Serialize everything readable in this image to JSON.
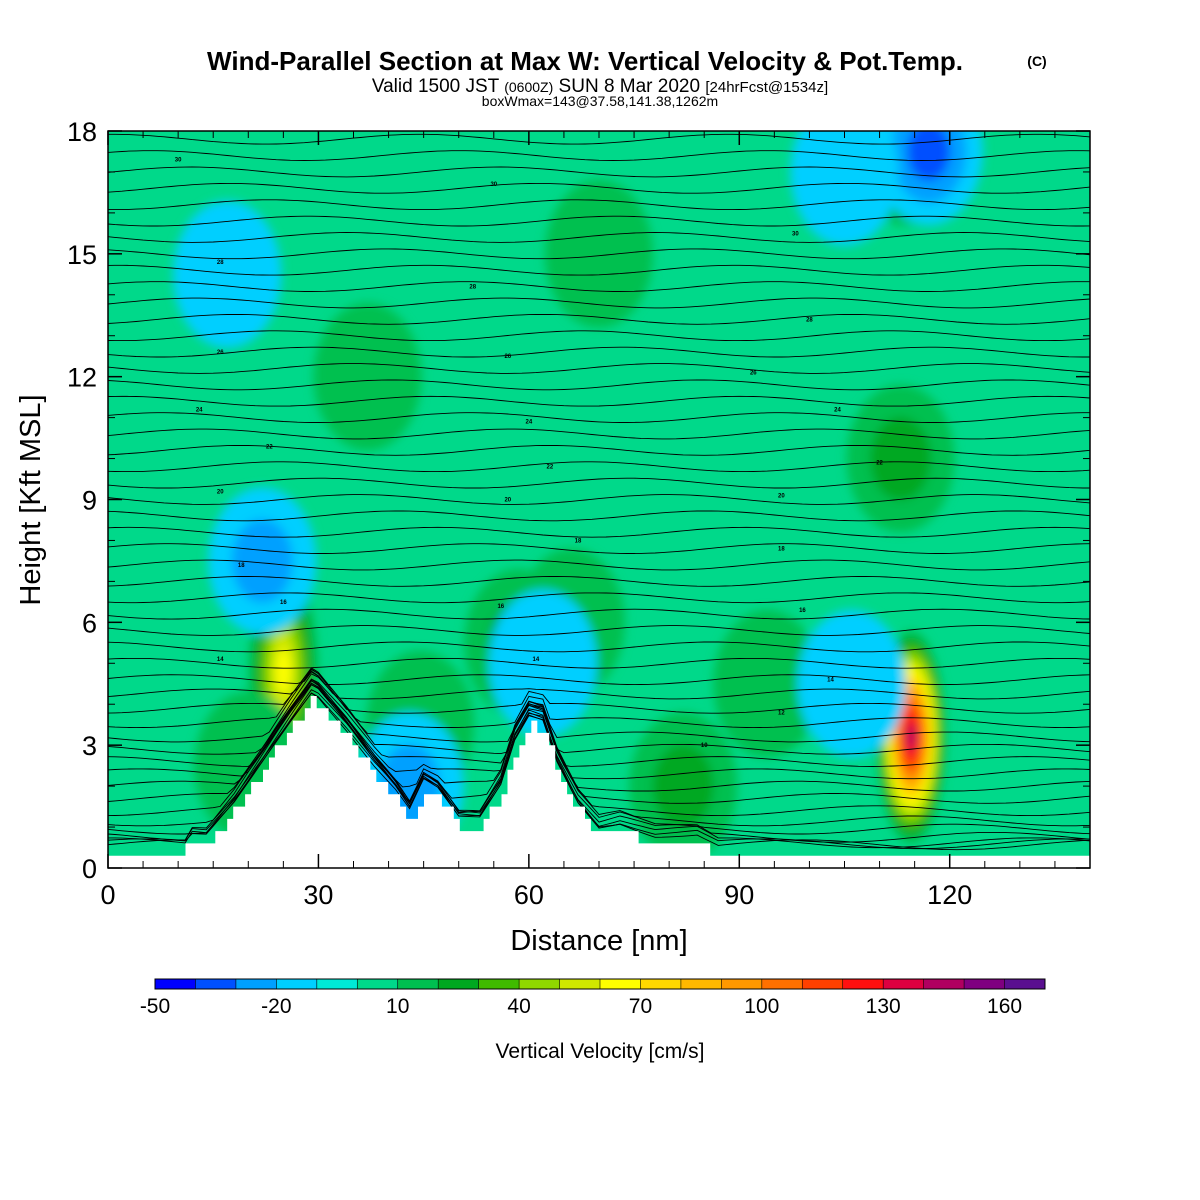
{
  "header": {
    "title": "Wind-Parallel Section at Max W: Vertical Velocity & Pot.Temp.",
    "title_mark": "(C)",
    "valid_prefix": "Valid 1500 JST",
    "valid_z": "(0600Z)",
    "valid_date": "SUN 8 Mar 2020",
    "forecast": "[24hrFcst@1534z]",
    "box_info": "boxWmax=143@37.58,141.38,1262m"
  },
  "chart_data": {
    "type": "heatmap",
    "description_kind": "cross-section",
    "xlabel": "Distance [nm]",
    "ylabel": "Height [Kft MSL]",
    "xlim": [
      0,
      140
    ],
    "ylim": [
      0,
      18
    ],
    "x_ticks": [
      "0",
      "30",
      "60",
      "90",
      "120"
    ],
    "y_ticks": [
      "0",
      "3",
      "6",
      "9",
      "12",
      "15",
      "18"
    ],
    "colorbar": {
      "title": "Vertical Velocity [cm/s]",
      "min": -50,
      "max": 170,
      "step": 10,
      "tick_labels": [
        "-50",
        "-20",
        "10",
        "40",
        "70",
        "100",
        "130",
        "160"
      ],
      "colors": [
        "#0000ff",
        "#0050ff",
        "#00a0ff",
        "#00cfff",
        "#00ead6",
        "#00d98a",
        "#00c050",
        "#00a820",
        "#40bb00",
        "#90d800",
        "#d0e800",
        "#ffff00",
        "#ffd800",
        "#ffb800",
        "#ff9800",
        "#ff7000",
        "#ff4000",
        "#ff1010",
        "#dd0040",
        "#b00060",
        "#7f0080",
        "#5a1090"
      ]
    },
    "background_value": 0,
    "terrain": {
      "x": [
        0,
        11,
        11,
        14,
        18,
        22,
        26,
        29,
        30,
        34,
        38,
        41,
        43,
        45,
        47,
        50,
        53,
        56,
        58,
        60,
        62,
        64,
        67,
        70,
        73,
        78,
        84,
        87,
        90,
        100,
        110,
        120,
        140
      ],
      "height": [
        0.3,
        0.3,
        0.6,
        0.6,
        1.4,
        2.4,
        3.4,
        4.1,
        4.0,
        3.2,
        2.3,
        1.7,
        1.2,
        1.9,
        1.7,
        1.0,
        1.0,
        1.8,
        2.9,
        3.5,
        3.4,
        2.4,
        1.4,
        0.8,
        0.9,
        0.6,
        0.6,
        0.3,
        0.3,
        0.3,
        0.3,
        0.3,
        0.3
      ]
    },
    "updraft_cells": [
      {
        "x": 114.5,
        "height": 3.2,
        "peak": 143
      },
      {
        "x": 25,
        "height": 4.8,
        "peak": 60
      },
      {
        "x": 58.5,
        "height": 5.5,
        "peak": 25
      },
      {
        "x": 82,
        "height": 2.0,
        "peak": 25
      },
      {
        "x": 94,
        "height": 4.5,
        "peak": 15
      },
      {
        "x": 20,
        "height": 2.5,
        "peak": 12
      },
      {
        "x": 44.5,
        "height": 3.5,
        "peak": 18
      },
      {
        "x": 113,
        "height": 10,
        "peak": 20
      },
      {
        "x": 113.5,
        "height": 17.5,
        "peak": 25
      },
      {
        "x": 66,
        "height": 6,
        "peak": 12
      },
      {
        "x": 70,
        "height": 15,
        "peak": 10
      },
      {
        "x": 37,
        "height": 12,
        "peak": 10
      }
    ],
    "downdraft_cells": [
      {
        "x": 117,
        "height": 17.5,
        "peak": -30
      },
      {
        "x": 43,
        "height": 2.0,
        "peak": -25
      },
      {
        "x": 22,
        "height": 7.5,
        "peak": -20
      },
      {
        "x": 62,
        "height": 5.0,
        "peak": -15
      },
      {
        "x": 106,
        "height": 4.5,
        "peak": -15
      },
      {
        "x": 17,
        "height": 14.5,
        "peak": -12
      },
      {
        "x": 105,
        "height": 17.0,
        "peak": -15
      }
    ],
    "theta_contours": {
      "units": "C",
      "base_heights": [
        0.15,
        0.35,
        0.55,
        0.75,
        0.95,
        1.15,
        1.4,
        1.7,
        2.0,
        2.3,
        2.6,
        2.9,
        3.2,
        3.55,
        3.9,
        4.25,
        4.6,
        5.0,
        5.4,
        5.8,
        6.2,
        6.6,
        7.0,
        7.4,
        7.8,
        8.2,
        8.6,
        9.0,
        9.4,
        9.8,
        10.2,
        10.6,
        11.0,
        11.4,
        11.8,
        12.2,
        12.6,
        13.0,
        13.4,
        13.8,
        14.2,
        14.6,
        15.0,
        15.4,
        15.8,
        16.2,
        16.6,
        17.0,
        17.4,
        17.8
      ],
      "labels": [
        {
          "text": "10",
          "x": 85,
          "height": 3.0
        },
        {
          "text": "12",
          "x": 96,
          "height": 3.8
        },
        {
          "text": "14",
          "x": 103,
          "height": 4.6
        },
        {
          "text": "14",
          "x": 61,
          "height": 5.1
        },
        {
          "text": "14",
          "x": 16,
          "height": 5.1
        },
        {
          "text": "16",
          "x": 25,
          "height": 6.5
        },
        {
          "text": "16",
          "x": 56,
          "height": 6.4
        },
        {
          "text": "16",
          "x": 99,
          "height": 6.3
        },
        {
          "text": "18",
          "x": 19,
          "height": 7.4
        },
        {
          "text": "18",
          "x": 67,
          "height": 8.0
        },
        {
          "text": "18",
          "x": 96,
          "height": 7.8
        },
        {
          "text": "20",
          "x": 57,
          "height": 9.0
        },
        {
          "text": "20",
          "x": 16,
          "height": 9.2
        },
        {
          "text": "20",
          "x": 96,
          "height": 9.1
        },
        {
          "text": "22",
          "x": 23,
          "height": 10.3
        },
        {
          "text": "22",
          "x": 63,
          "height": 9.8
        },
        {
          "text": "22",
          "x": 110,
          "height": 9.9
        },
        {
          "text": "24",
          "x": 13,
          "height": 11.2
        },
        {
          "text": "24",
          "x": 60,
          "height": 10.9
        },
        {
          "text": "24",
          "x": 104,
          "height": 11.2
        },
        {
          "text": "26",
          "x": 16,
          "height": 12.6
        },
        {
          "text": "26",
          "x": 57,
          "height": 12.5
        },
        {
          "text": "26",
          "x": 92,
          "height": 12.1
        },
        {
          "text": "28",
          "x": 16,
          "height": 14.8
        },
        {
          "text": "28",
          "x": 52,
          "height": 14.2
        },
        {
          "text": "28",
          "x": 100,
          "height": 13.4
        },
        {
          "text": "30",
          "x": 10,
          "height": 17.3
        },
        {
          "text": "30",
          "x": 55,
          "height": 16.7
        },
        {
          "text": "30",
          "x": 98,
          "height": 15.5
        }
      ]
    }
  }
}
